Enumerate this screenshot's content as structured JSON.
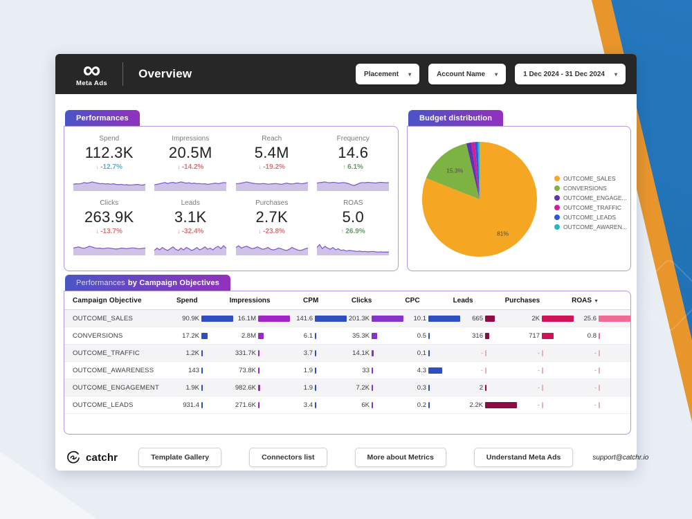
{
  "header": {
    "logo_title": "Meta Ads",
    "page_title": "Overview",
    "filters": [
      "Placement",
      "Account Name",
      "1 Dec 2024 - 31 Dec 2024"
    ]
  },
  "colors": {
    "header_bg": "#272727",
    "tab_gradient_start": "#4a55c5",
    "tab_gradient_end": "#9231bd",
    "panel_border": "#b197dc",
    "sparkline_line": "#7E57C2",
    "sparkline_fill": "#CEC2E6",
    "bg_blue": "#2578bd",
    "bg_orange": "#E8952C",
    "dash_text": "#cf8d8d",
    "dash_bar": "#e0b3b3"
  },
  "performances": {
    "tab": "Performances",
    "kpis": [
      {
        "label": "Spend",
        "value": "112.3K",
        "delta": "-12.7%",
        "direction": "down",
        "delta_color": "#56aeda",
        "arrow_color": "#e08a8a",
        "spark": [
          0.45,
          0.5,
          0.48,
          0.52,
          0.6,
          0.55,
          0.58,
          0.65,
          0.6,
          0.55,
          0.5,
          0.52,
          0.48,
          0.5,
          0.46,
          0.5,
          0.44,
          0.42,
          0.45,
          0.4,
          0.42,
          0.38,
          0.4,
          0.42,
          0.44,
          0.4,
          0.38,
          0.45
        ]
      },
      {
        "label": "Impressions",
        "value": "20.5M",
        "delta": "-14.2%",
        "direction": "down",
        "delta_color": "#d97373",
        "arrow_color": "#d97373",
        "spark": [
          0.4,
          0.45,
          0.5,
          0.55,
          0.6,
          0.52,
          0.58,
          0.62,
          0.55,
          0.6,
          0.65,
          0.6,
          0.55,
          0.58,
          0.52,
          0.55,
          0.5,
          0.52,
          0.48,
          0.5,
          0.45,
          0.48,
          0.52,
          0.55,
          0.5,
          0.55,
          0.6,
          0.58
        ]
      },
      {
        "label": "Reach",
        "value": "5.4M",
        "delta": "-19.2%",
        "direction": "down",
        "delta_color": "#d97373",
        "arrow_color": "#d97373",
        "spark": [
          0.5,
          0.52,
          0.55,
          0.6,
          0.65,
          0.6,
          0.55,
          0.52,
          0.5,
          0.48,
          0.52,
          0.5,
          0.46,
          0.48,
          0.5,
          0.52,
          0.48,
          0.45,
          0.5,
          0.55,
          0.5,
          0.48,
          0.52,
          0.56,
          0.52,
          0.5,
          0.55,
          0.6
        ]
      },
      {
        "label": "Frequency",
        "value": "14.6",
        "delta": "6.1%",
        "direction": "up",
        "delta_color": "#629c62",
        "arrow_color": "#629c62",
        "spark": [
          0.55,
          0.6,
          0.62,
          0.65,
          0.6,
          0.58,
          0.62,
          0.6,
          0.55,
          0.58,
          0.6,
          0.56,
          0.5,
          0.4,
          0.35,
          0.45,
          0.55,
          0.6,
          0.58,
          0.62,
          0.6,
          0.58,
          0.56,
          0.6,
          0.62,
          0.6,
          0.58,
          0.6
        ]
      },
      {
        "label": "Clicks",
        "value": "263.9K",
        "delta": "-13.7%",
        "direction": "down",
        "delta_color": "#d97373",
        "arrow_color": "#d97373",
        "spark": [
          0.5,
          0.55,
          0.6,
          0.52,
          0.48,
          0.55,
          0.65,
          0.6,
          0.52,
          0.48,
          0.5,
          0.45,
          0.48,
          0.52,
          0.48,
          0.45,
          0.42,
          0.45,
          0.5,
          0.48,
          0.45,
          0.48,
          0.52,
          0.5,
          0.46,
          0.44,
          0.48,
          0.5
        ]
      },
      {
        "label": "Leads",
        "value": "3.1K",
        "delta": "-32.4%",
        "direction": "down",
        "delta_color": "#d97373",
        "arrow_color": "#d97373",
        "spark": [
          0.3,
          0.5,
          0.35,
          0.55,
          0.4,
          0.3,
          0.45,
          0.6,
          0.4,
          0.3,
          0.5,
          0.35,
          0.55,
          0.45,
          0.3,
          0.4,
          0.55,
          0.35,
          0.45,
          0.6,
          0.4,
          0.5,
          0.35,
          0.55,
          0.65,
          0.45,
          0.7,
          0.5
        ]
      },
      {
        "label": "Purchases",
        "value": "2.7K",
        "delta": "-23.8%",
        "direction": "down",
        "delta_color": "#d97373",
        "arrow_color": "#d97373",
        "spark": [
          0.55,
          0.7,
          0.5,
          0.6,
          0.65,
          0.55,
          0.45,
          0.5,
          0.6,
          0.5,
          0.4,
          0.45,
          0.55,
          0.4,
          0.35,
          0.4,
          0.5,
          0.45,
          0.35,
          0.3,
          0.4,
          0.55,
          0.45,
          0.35,
          0.3,
          0.35,
          0.45,
          0.5
        ]
      },
      {
        "label": "ROAS",
        "value": "5.0",
        "delta": "26.9%",
        "direction": "up",
        "delta_color": "#629c62",
        "arrow_color": "#629c62",
        "spark": [
          0.55,
          0.8,
          0.45,
          0.65,
          0.5,
          0.4,
          0.55,
          0.35,
          0.45,
          0.3,
          0.35,
          0.25,
          0.3,
          0.28,
          0.25,
          0.22,
          0.25,
          0.2,
          0.22,
          0.18,
          0.2,
          0.22,
          0.18,
          0.16,
          0.18,
          0.15,
          0.17,
          0.15
        ]
      }
    ]
  },
  "budget": {
    "tab": "Budget distribution"
  },
  "chart_data": {
    "type": "pie",
    "title": "Budget distribution",
    "legend_position": "right",
    "slices": [
      {
        "label": "OUTCOME_SALES",
        "value": 81,
        "color": "#F5A623",
        "display": "81%"
      },
      {
        "label": "CONVERSIONS",
        "value": 15.3,
        "color": "#7CB342",
        "display": "15.3%"
      },
      {
        "label": "OUTCOME_ENGAGE...",
        "value": 1.4,
        "color": "#5E35B1"
      },
      {
        "label": "OUTCOME_TRAFFIC",
        "value": 1.0,
        "color": "#D81B9B"
      },
      {
        "label": "OUTCOME_LEADS",
        "value": 0.8,
        "color": "#2A5BD7"
      },
      {
        "label": "OUTCOME_AWAREN...",
        "value": 0.5,
        "color": "#26B8C8"
      }
    ]
  },
  "table": {
    "tab_light": "Performances",
    "tab_bold": "by Campaign Objectives",
    "columns": [
      {
        "label": "Campaign Objective"
      },
      {
        "label": "Spend",
        "color": "#2F4FC1"
      },
      {
        "label": "Impressions",
        "color": "#A224C4"
      },
      {
        "label": "CPM",
        "color": "#2F4FC1"
      },
      {
        "label": "Clicks",
        "color": "#8633CC"
      },
      {
        "label": "CPC",
        "color": "#2F4FC1"
      },
      {
        "label": "Leads",
        "color": "#8E0C44"
      },
      {
        "label": "Purchases",
        "color": "#CE1456"
      },
      {
        "label": "ROAS",
        "color": "#EE6C96",
        "sorted": "desc"
      }
    ],
    "rows": [
      {
        "objective": "OUTCOME_SALES",
        "cells": [
          {
            "text": "90.9K",
            "frac": 1
          },
          {
            "text": "16.1M",
            "frac": 1
          },
          {
            "text": "141.6",
            "frac": 1
          },
          {
            "text": "201.3K",
            "frac": 1
          },
          {
            "text": "10.1",
            "frac": 1
          },
          {
            "text": "665",
            "frac": 0.3
          },
          {
            "text": "2K",
            "frac": 1
          },
          {
            "text": "25.6",
            "frac": 1
          }
        ]
      },
      {
        "objective": "CONVERSIONS",
        "cells": [
          {
            "text": "17.2K",
            "frac": 0.19
          },
          {
            "text": "2.8M",
            "frac": 0.17
          },
          {
            "text": "6.1",
            "frac": 0.04
          },
          {
            "text": "35.3K",
            "frac": 0.18
          },
          {
            "text": "0.5",
            "frac": 0.05
          },
          {
            "text": "316",
            "frac": 0.14
          },
          {
            "text": "717",
            "frac": 0.36
          },
          {
            "text": "0.8",
            "frac": 0.03
          }
        ]
      },
      {
        "objective": "OUTCOME_TRAFFIC",
        "cells": [
          {
            "text": "1.2K",
            "frac": 0.013
          },
          {
            "text": "331.7K",
            "frac": 0.02
          },
          {
            "text": "3.7",
            "frac": 0.026
          },
          {
            "text": "14.1K",
            "frac": 0.07
          },
          {
            "text": "0.1",
            "frac": 0.01
          },
          {
            "text": "-"
          },
          {
            "text": "-"
          },
          {
            "text": "-"
          }
        ]
      },
      {
        "objective": "OUTCOME_AWARENESS",
        "cells": [
          {
            "text": "143",
            "frac": 0.002
          },
          {
            "text": "73.8K",
            "frac": 0.005
          },
          {
            "text": "1.9",
            "frac": 0.013
          },
          {
            "text": "33",
            "frac": 0.002
          },
          {
            "text": "4.3",
            "frac": 0.43
          },
          {
            "text": "-"
          },
          {
            "text": "-"
          },
          {
            "text": "-"
          }
        ]
      },
      {
        "objective": "OUTCOME_ENGAGEMENT",
        "cells": [
          {
            "text": "1.9K",
            "frac": 0.021
          },
          {
            "text": "982.6K",
            "frac": 0.06
          },
          {
            "text": "1.9",
            "frac": 0.013
          },
          {
            "text": "7.2K",
            "frac": 0.036
          },
          {
            "text": "0.3",
            "frac": 0.03
          },
          {
            "text": "2",
            "frac": 0.001
          },
          {
            "text": "-"
          },
          {
            "text": "-"
          }
        ]
      },
      {
        "objective": "OUTCOME_LEADS",
        "cells": [
          {
            "text": "931.4",
            "frac": 0.01
          },
          {
            "text": "271.6K",
            "frac": 0.017
          },
          {
            "text": "3.4",
            "frac": 0.024
          },
          {
            "text": "6K",
            "frac": 0.03
          },
          {
            "text": "0.2",
            "frac": 0.02
          },
          {
            "text": "2.2K",
            "frac": 1
          },
          {
            "text": "-"
          },
          {
            "text": "-"
          }
        ]
      }
    ]
  },
  "footer": {
    "brand": "catchr",
    "buttons": [
      "Template Gallery",
      "Connectors list",
      "More about Metrics",
      "Understand Meta Ads"
    ],
    "support": "support@catchr.io"
  }
}
